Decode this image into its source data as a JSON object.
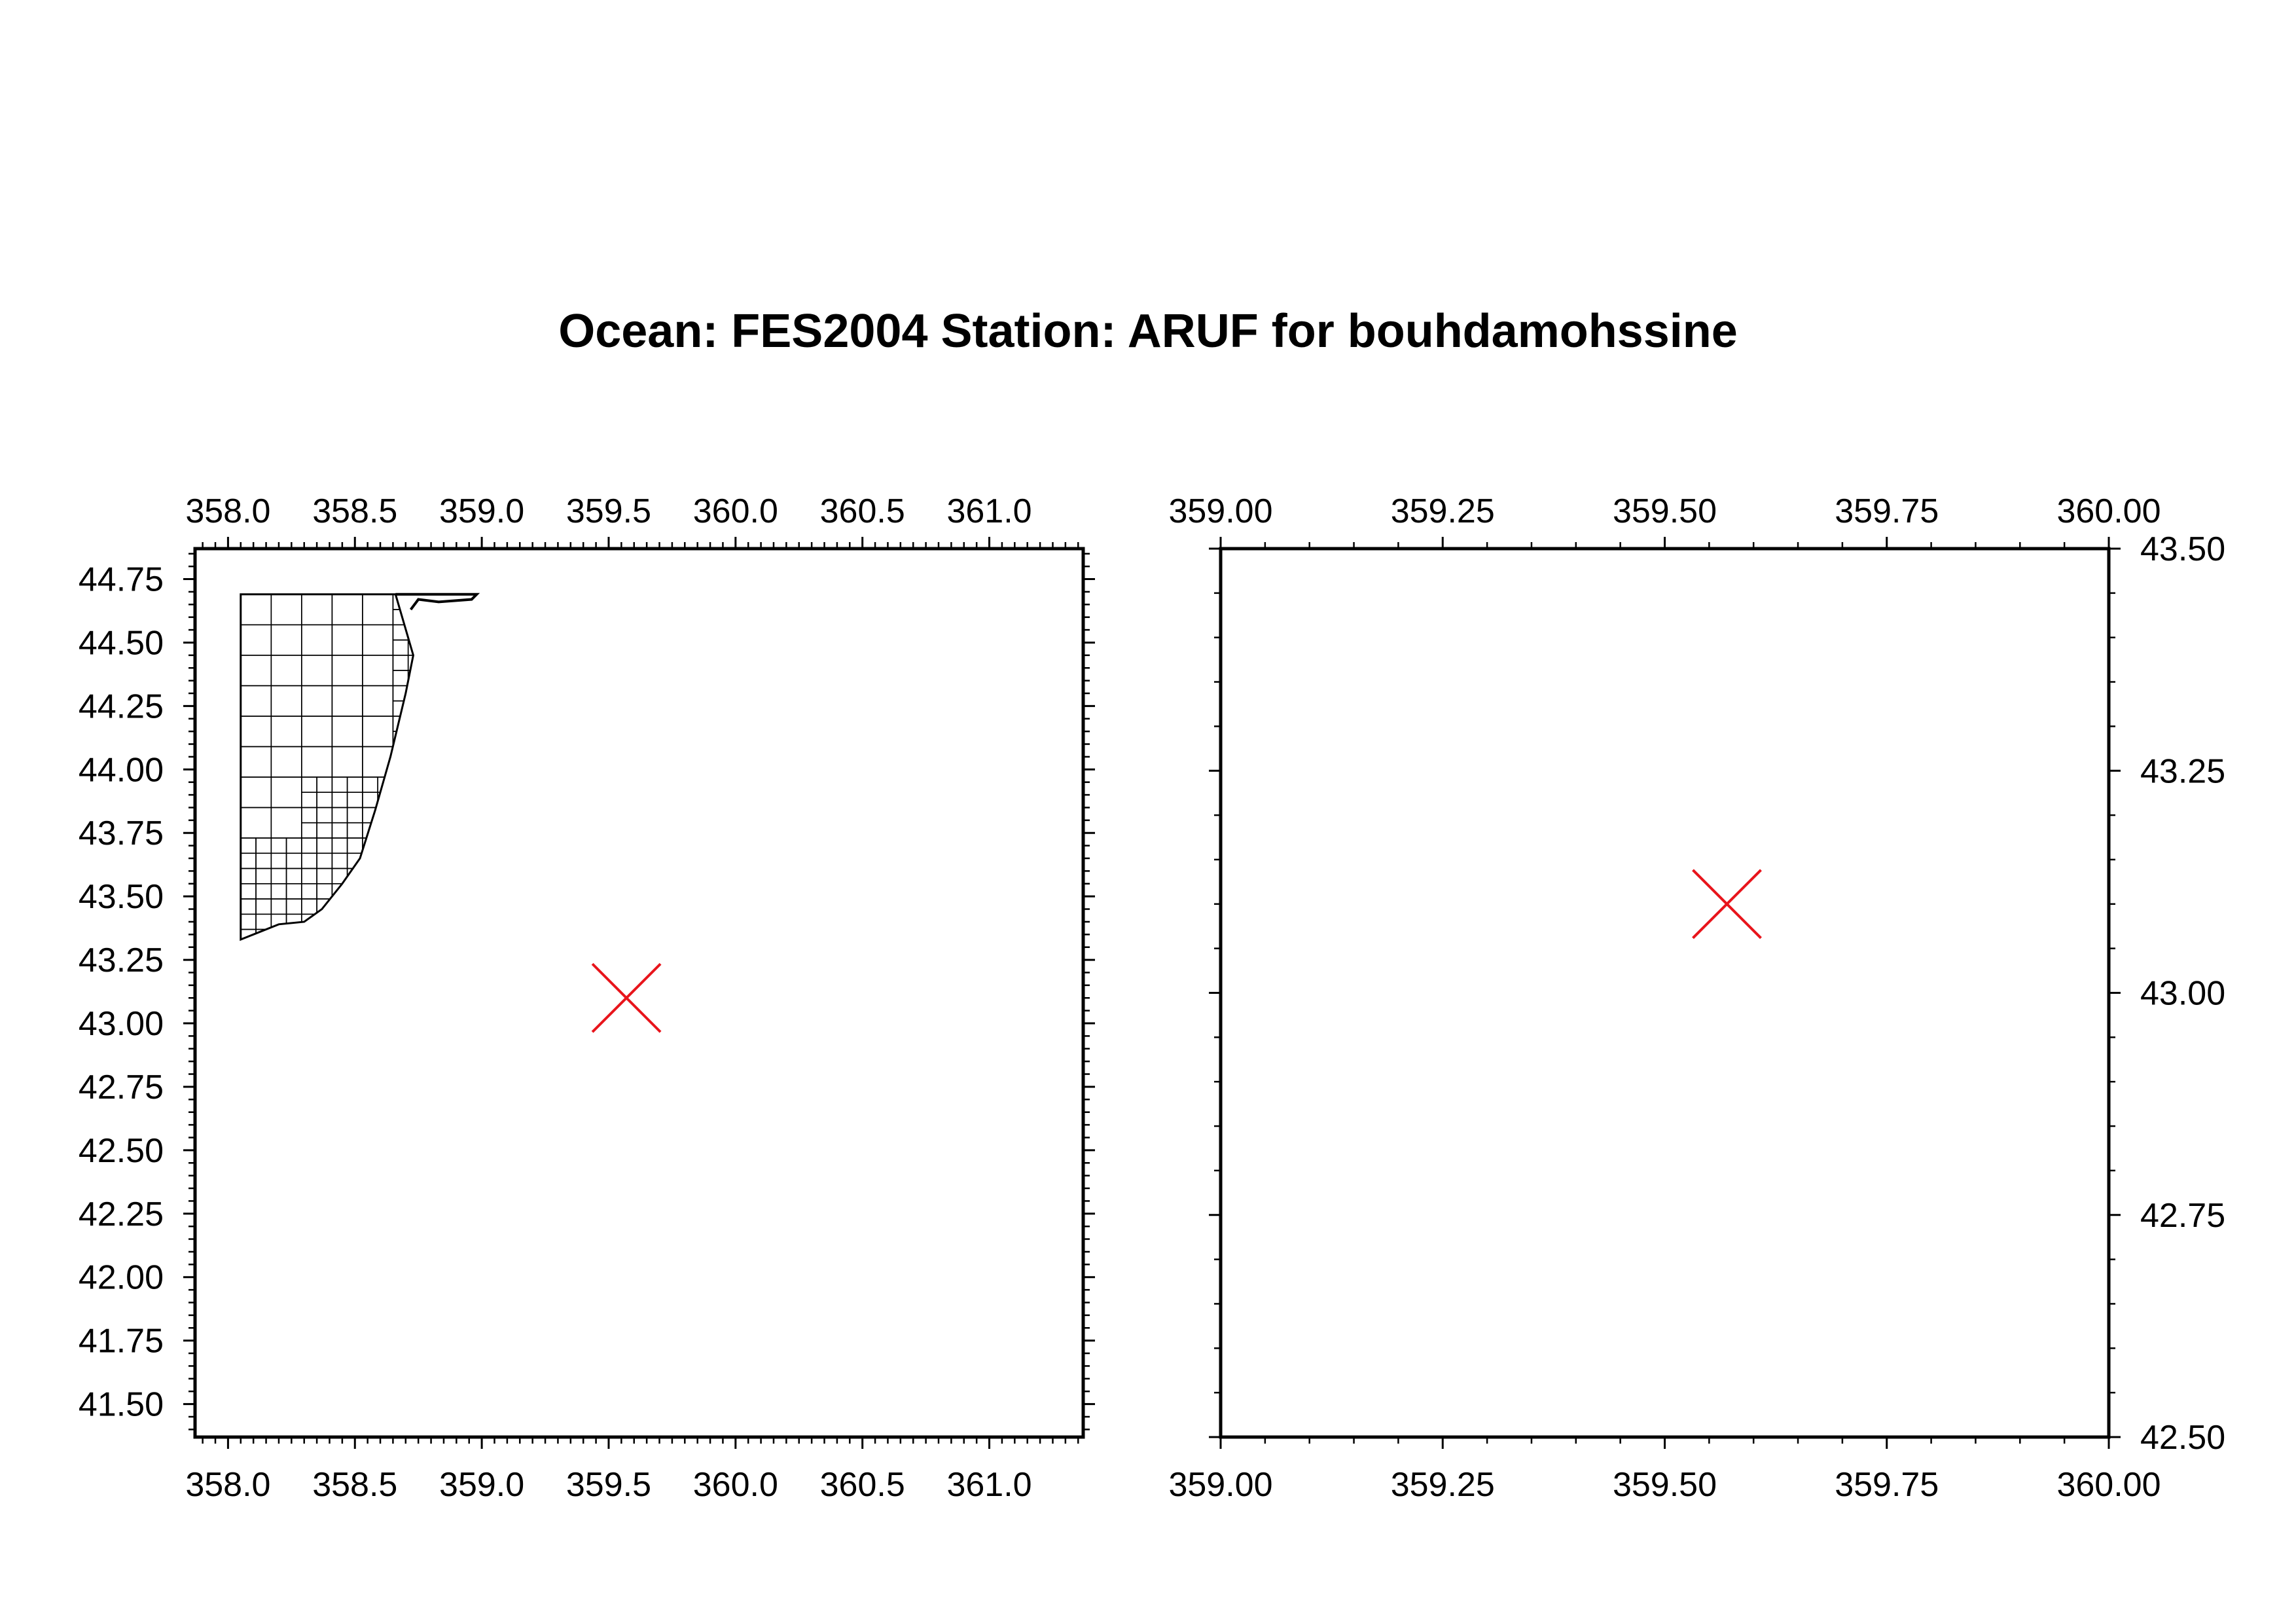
{
  "title": "Ocean: FES2004  Station: ARUF  for bouhdamohssine",
  "colors": {
    "frame": "#000000",
    "marker": "#e8141b",
    "grid": "#000000",
    "background": "#ffffff"
  },
  "chart_data": [
    {
      "type": "map",
      "panel": "overview",
      "xlim": [
        357.87,
        361.37
      ],
      "ylim": [
        41.37,
        44.87
      ],
      "x_ticks": [
        "358.0",
        "358.5",
        "359.0",
        "359.5",
        "360.0",
        "360.5",
        "361.0"
      ],
      "x_tick_values": [
        358.0,
        358.5,
        359.0,
        359.5,
        360.0,
        360.5,
        361.0
      ],
      "y_ticks": [
        "44.75",
        "44.50",
        "44.25",
        "44.00",
        "43.75",
        "43.50",
        "43.25",
        "43.00",
        "42.75",
        "42.50",
        "42.25",
        "42.00",
        "41.75",
        "41.50"
      ],
      "y_tick_values": [
        44.75,
        44.5,
        44.25,
        44.0,
        43.75,
        43.5,
        43.25,
        43.0,
        42.75,
        42.5,
        42.25,
        42.0,
        41.75,
        41.5
      ],
      "y_axis_side": "left",
      "station": {
        "name": "ARUF",
        "lon": 359.57,
        "lat": 43.1
      },
      "coast_outline": [
        [
          358.05,
          44.69
        ],
        [
          358.66,
          44.69
        ],
        [
          358.73,
          44.45
        ],
        [
          358.7,
          44.3
        ],
        [
          358.64,
          44.05
        ],
        [
          358.58,
          43.84
        ],
        [
          358.52,
          43.65
        ],
        [
          358.45,
          43.55
        ],
        [
          358.37,
          43.45
        ],
        [
          358.3,
          43.4
        ],
        [
          358.2,
          43.39
        ],
        [
          358.1,
          43.35
        ],
        [
          358.05,
          43.33
        ]
      ],
      "grid_cells": [
        {
          "x": 358.05,
          "y": 44.57,
          "w": 0.12,
          "h": 0.125
        },
        {
          "x": 358.17,
          "y": 44.57,
          "w": 0.12,
          "h": 0.125
        }
      ]
    },
    {
      "type": "map",
      "panel": "zoom",
      "xlim": [
        359.0,
        360.0
      ],
      "ylim": [
        42.5,
        43.5
      ],
      "x_ticks": [
        "359.00",
        "359.25",
        "359.50",
        "359.75",
        "360.00"
      ],
      "x_tick_values": [
        359.0,
        359.25,
        359.5,
        359.75,
        360.0
      ],
      "y_ticks": [
        "43.50",
        "43.25",
        "43.00",
        "42.75",
        "42.50"
      ],
      "y_tick_values": [
        43.5,
        43.25,
        43.0,
        42.75,
        42.5
      ],
      "y_axis_side": "right",
      "station": {
        "name": "ARUF",
        "lon": 359.57,
        "lat": 43.1
      }
    }
  ]
}
